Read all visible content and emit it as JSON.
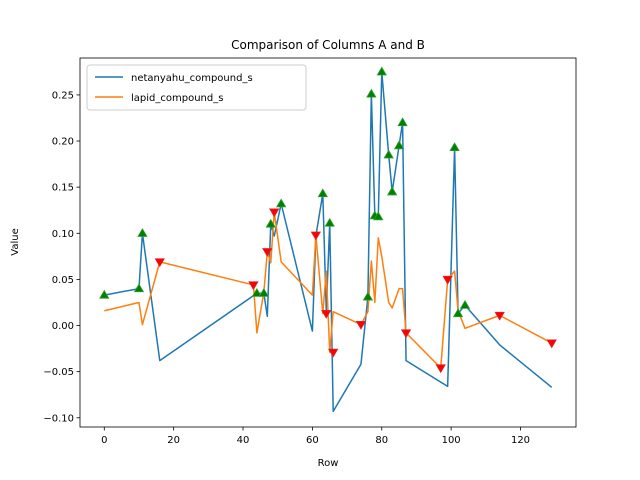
{
  "chart_data": {
    "type": "line",
    "title": "Comparison of Columns A and B",
    "xlabel": "Row",
    "ylabel": "Value",
    "xlim": [
      -7,
      136
    ],
    "ylim": [
      -0.11,
      0.29
    ],
    "xticks": [
      0,
      20,
      40,
      60,
      80,
      100,
      120
    ],
    "yticks": [
      -0.1,
      -0.05,
      0.0,
      0.05,
      0.1,
      0.15,
      0.2,
      0.25
    ],
    "ytick_labels": [
      "−0.10",
      "−0.05",
      "0.00",
      "0.05",
      "0.10",
      "0.15",
      "0.20",
      "0.25"
    ],
    "legend_position": "upper-left",
    "grid": false,
    "series": [
      {
        "name": "netanyahu_compound_s",
        "color": "#1f77b4",
        "x": [
          0,
          10,
          11,
          16,
          44,
          46,
          47,
          48,
          49,
          51,
          60,
          61,
          63,
          64,
          65,
          66,
          74,
          76,
          77,
          78,
          79,
          80,
          82,
          83,
          85,
          86,
          87,
          99,
          101,
          102,
          104,
          114,
          129
        ],
        "y": [
          0.033,
          0.04,
          0.1,
          -0.038,
          0.035,
          0.035,
          0.01,
          0.11,
          0.097,
          0.132,
          -0.006,
          0.097,
          0.143,
          0.016,
          0.111,
          -0.093,
          -0.042,
          0.031,
          0.251,
          0.119,
          0.118,
          0.275,
          0.185,
          0.145,
          0.195,
          0.22,
          -0.038,
          -0.066,
          0.193,
          0.013,
          0.022,
          -0.021,
          -0.067
        ]
      },
      {
        "name": "lapid_compound_s",
        "color": "#ff7f0e",
        "x": [
          0,
          10,
          11,
          16,
          43,
          44,
          46,
          47,
          48,
          49,
          51,
          60,
          61,
          63,
          64,
          65,
          66,
          74,
          76,
          77,
          78,
          79,
          80,
          82,
          83,
          85,
          86,
          87,
          97,
          99,
          101,
          102,
          104,
          114,
          129
        ],
        "y": [
          0.016,
          0.025,
          0.001,
          0.069,
          0.044,
          -0.008,
          0.036,
          0.08,
          0.068,
          0.123,
          0.069,
          0.033,
          0.098,
          0.013,
          0.059,
          -0.029,
          0.015,
          0.001,
          0.015,
          0.07,
          0.025,
          0.095,
          0.075,
          0.025,
          0.019,
          0.04,
          0.04,
          -0.008,
          -0.046,
          0.05,
          0.059,
          0.016,
          -0.003,
          0.011,
          -0.019
        ]
      }
    ],
    "markers": {
      "up": {
        "color": "#008000",
        "edge": "#2ca02c",
        "x": [
          0,
          10,
          11,
          44,
          46,
          48,
          51,
          63,
          65,
          76,
          77,
          78,
          79,
          80,
          82,
          83,
          85,
          86,
          101,
          102,
          104
        ],
        "y": [
          0.033,
          0.04,
          0.1,
          0.035,
          0.035,
          0.11,
          0.132,
          0.143,
          0.111,
          0.031,
          0.251,
          0.119,
          0.118,
          0.275,
          0.185,
          0.145,
          0.195,
          0.22,
          0.193,
          0.013,
          0.022
        ]
      },
      "down": {
        "color": "#ff0000",
        "edge": "#d62728",
        "x": [
          16,
          43,
          47,
          49,
          61,
          64,
          66,
          74,
          87,
          97,
          99,
          114,
          129
        ],
        "y": [
          0.069,
          0.044,
          0.08,
          0.123,
          0.098,
          0.013,
          -0.029,
          0.001,
          -0.008,
          -0.046,
          0.05,
          0.011,
          -0.019
        ]
      }
    }
  }
}
